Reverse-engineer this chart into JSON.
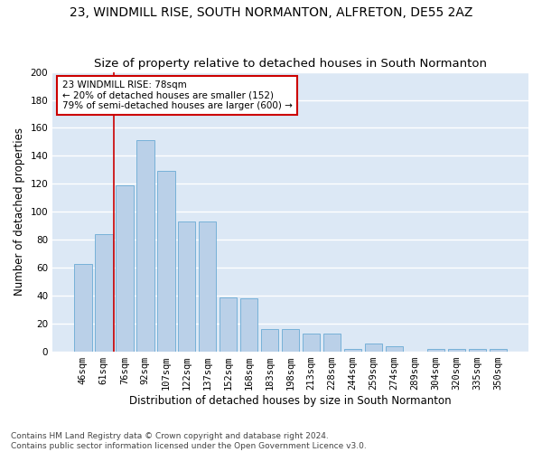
{
  "title1": "23, WINDMILL RISE, SOUTH NORMANTON, ALFRETON, DE55 2AZ",
  "title2": "Size of property relative to detached houses in South Normanton",
  "xlabel": "Distribution of detached houses by size in South Normanton",
  "ylabel": "Number of detached properties",
  "footer1": "Contains HM Land Registry data © Crown copyright and database right 2024.",
  "footer2": "Contains public sector information licensed under the Open Government Licence v3.0.",
  "categories": [
    "46sqm",
    "61sqm",
    "76sqm",
    "92sqm",
    "107sqm",
    "122sqm",
    "137sqm",
    "152sqm",
    "168sqm",
    "183sqm",
    "198sqm",
    "213sqm",
    "228sqm",
    "244sqm",
    "259sqm",
    "274sqm",
    "289sqm",
    "304sqm",
    "320sqm",
    "335sqm",
    "350sqm"
  ],
  "values": [
    63,
    84,
    119,
    151,
    129,
    93,
    93,
    39,
    38,
    16,
    16,
    13,
    13,
    2,
    6,
    4,
    0,
    2,
    2,
    2,
    2
  ],
  "bar_color": "#bad0e8",
  "bar_edge_color": "#6aaad4",
  "bg_color": "#dce8f5",
  "annotation_text": "23 WINDMILL RISE: 78sqm\n← 20% of detached houses are smaller (152)\n79% of semi-detached houses are larger (600) →",
  "annotation_box_color": "#ffffff",
  "annotation_border_color": "#cc0000",
  "vline_x": 1.5,
  "vline_color": "#cc0000",
  "ylim": [
    0,
    200
  ],
  "yticks": [
    0,
    20,
    40,
    60,
    80,
    100,
    120,
    140,
    160,
    180,
    200
  ],
  "grid_color": "#ffffff",
  "title1_fontsize": 10,
  "title2_fontsize": 9.5,
  "axis_label_fontsize": 8.5,
  "tick_fontsize": 7.5,
  "footer_fontsize": 6.5
}
